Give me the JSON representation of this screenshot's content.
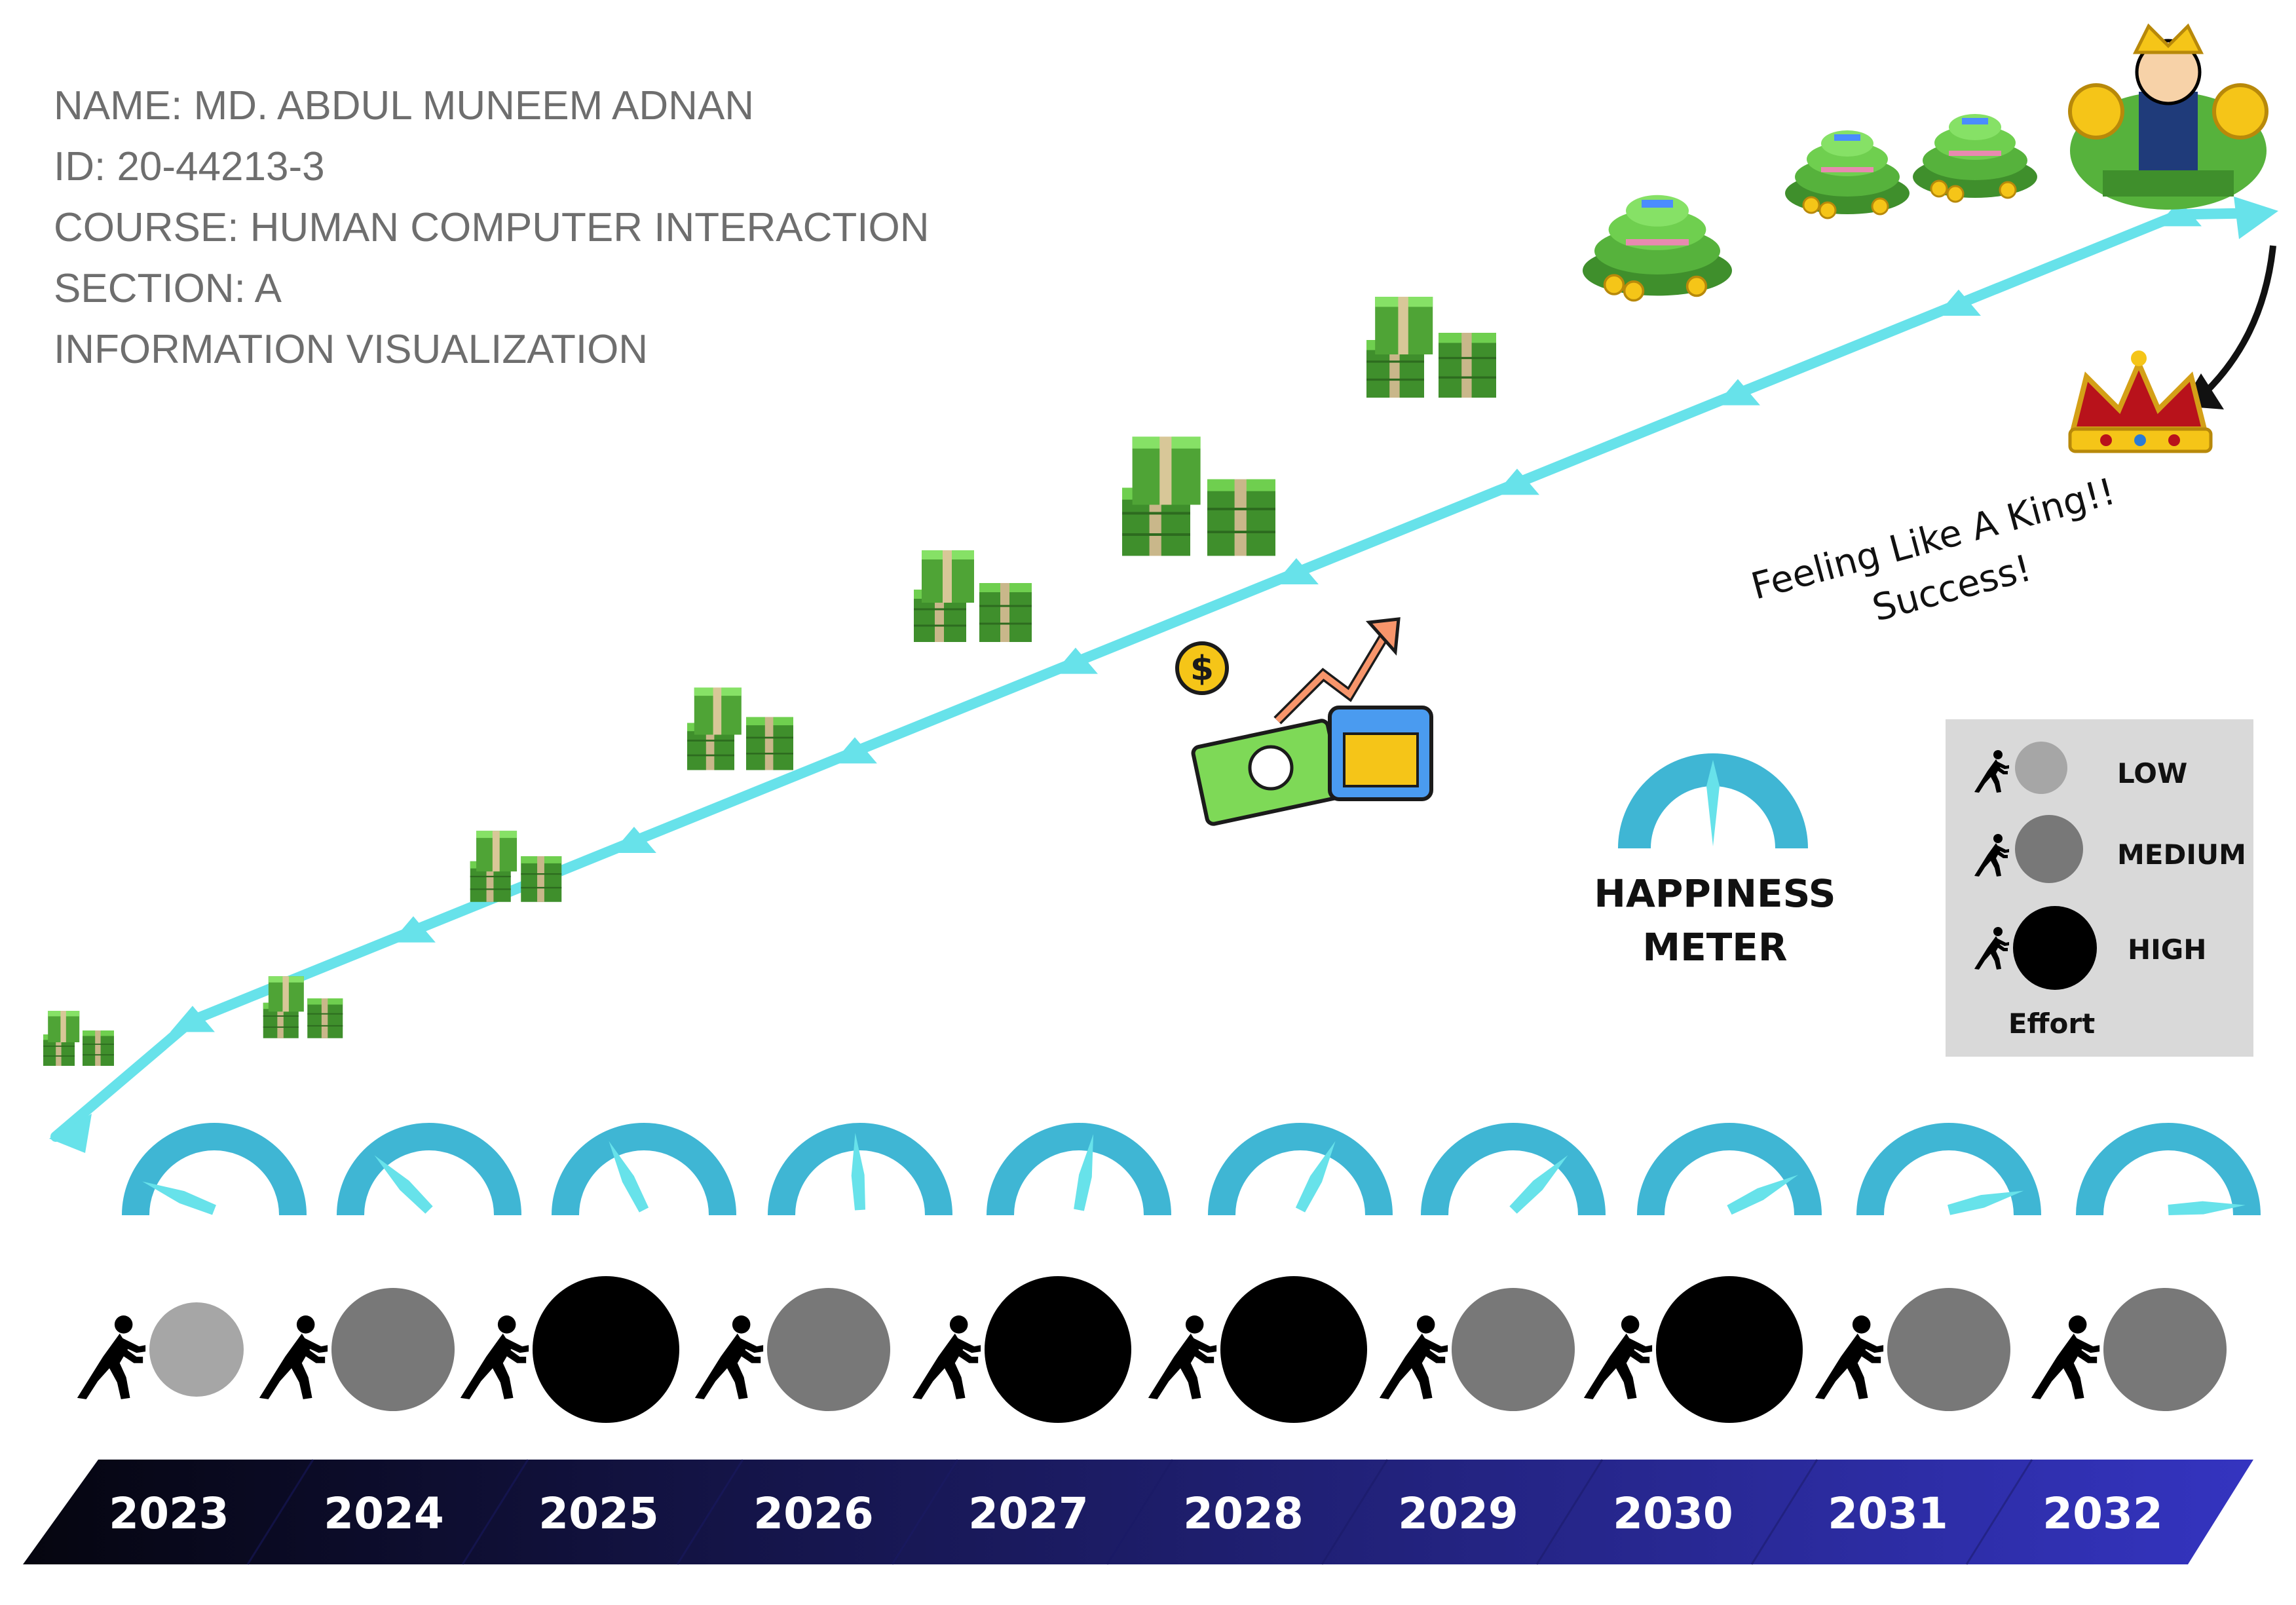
{
  "info": {
    "lines": [
      "NAME: MD. ABDUL MUNEEM ADNAN",
      "ID: 20-44213-3",
      "COURSE: HUMAN COMPUTER INTERACTION",
      "SECTION: A",
      "INFORMATION VISUALIZATION"
    ]
  },
  "annotation": {
    "line1": "Feeling Like A King!!",
    "line2": "Success!"
  },
  "legend_meter": {
    "line1": "HAPPINESS",
    "line2": "METER"
  },
  "legend_effort": {
    "low": "LOW",
    "medium": "MEDIUM",
    "high": "HIGH",
    "caption": "Effort"
  },
  "colors": {
    "trend_line": "#67e2ea",
    "gauge_arc": "#3fb6d4",
    "gauge_needle": "#67e2ea",
    "effort_low": "#a6a6a6",
    "effort_medium": "#787878",
    "effort_high": "#000000",
    "timeline_dark": "#0a0a20",
    "timeline_light": "#3434c0",
    "money_green": "#56b23c",
    "legend_box": "#d9d9d9"
  },
  "icons": {
    "trend_markers": "money-stack-icon",
    "top_right": "rich-king-icon",
    "crown": "crown-icon",
    "growth": "financial-growth-icon",
    "person": "pushing-person-icon"
  },
  "chart_data": {
    "type": "line",
    "categories": [
      "2023",
      "2024",
      "2025",
      "2026",
      "2027",
      "2028",
      "2029",
      "2030",
      "2031",
      "2032"
    ],
    "series": [
      {
        "values": [
          1,
          2,
          3,
          4,
          5,
          6,
          7,
          8,
          9,
          10
        ]
      }
    ],
    "happiness": [
      0.12,
      0.25,
      0.35,
      0.48,
      0.56,
      0.65,
      0.75,
      0.85,
      0.92,
      0.98
    ],
    "effort": [
      "LOW",
      "MEDIUM",
      "HIGH",
      "MEDIUM",
      "HIGH",
      "HIGH",
      "MEDIUM",
      "HIGH",
      "MEDIUM",
      "MEDIUM"
    ],
    "ylim": [
      0,
      10.5
    ],
    "grid": false
  }
}
